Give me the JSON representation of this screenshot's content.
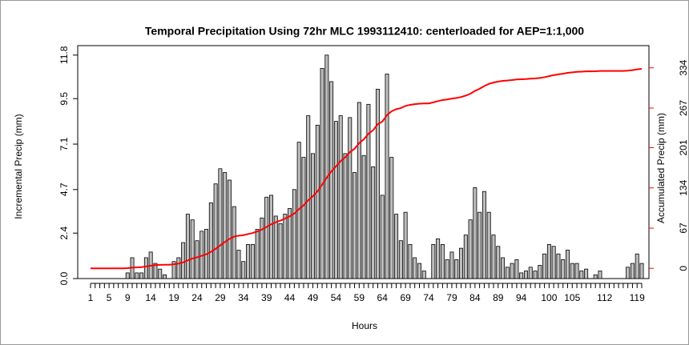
{
  "chart_data": {
    "type": "bar",
    "title": "Temporal Precipitation Using 72hr MLC 1993112410: centerloaded for AEP=1:1,000",
    "x_label": "Hours",
    "y_label": "Incremental Precip (mm)",
    "y2_label": "Accumulated Precip (mm)",
    "categories": [
      "1",
      null,
      null,
      null,
      "5",
      null,
      null,
      null,
      "9",
      null,
      null,
      null,
      null,
      "14",
      null,
      null,
      null,
      null,
      "19",
      null,
      null,
      null,
      null,
      "24",
      null,
      null,
      null,
      null,
      "29",
      null,
      null,
      null,
      null,
      "34",
      null,
      null,
      null,
      null,
      "39",
      null,
      null,
      null,
      null,
      "44",
      null,
      null,
      null,
      null,
      "49",
      null,
      null,
      null,
      null,
      "54",
      null,
      null,
      null,
      null,
      "59",
      null,
      null,
      null,
      null,
      "64",
      null,
      null,
      null,
      null,
      "69",
      null,
      null,
      null,
      null,
      "74",
      null,
      null,
      null,
      null,
      "79",
      null,
      null,
      null,
      null,
      "84",
      null,
      null,
      null,
      null,
      "89",
      null,
      null,
      null,
      null,
      "94",
      null,
      null,
      null,
      null,
      null,
      "100",
      null,
      null,
      null,
      null,
      "105",
      null,
      null,
      null,
      null,
      null,
      null,
      "112",
      null,
      null,
      null,
      null,
      null,
      null,
      "119",
      null
    ],
    "series": [
      {
        "type": "bar",
        "color": "#bebebe",
        "values": [
          0,
          0,
          0,
          0,
          0,
          0,
          0,
          0,
          0.3,
          1.1,
          0.3,
          0.3,
          1.1,
          1.4,
          0.8,
          0.5,
          0.2,
          0,
          0.9,
          1.1,
          1.9,
          3.4,
          3.1,
          2.0,
          2.5,
          2.6,
          4.0,
          5.0,
          5.8,
          5.6,
          5.2,
          3.8,
          1.5,
          0.9,
          1.8,
          1.8,
          2.6,
          3.2,
          4.3,
          4.4,
          3.3,
          2.9,
          3.4,
          3.7,
          4.7,
          7.2,
          6.4,
          8.6,
          6.6,
          8.1,
          11.1,
          11.8,
          10.4,
          8.3,
          8.6,
          6.6,
          8.5,
          5.6,
          9.3,
          6.5,
          9.2,
          5.9,
          10.0,
          4.4,
          10.8,
          6.4,
          3.4,
          2.0,
          3.5,
          1.8,
          1.1,
          0.8,
          0.4,
          0,
          1.8,
          2.1,
          1.8,
          1.0,
          1.4,
          1.0,
          1.6,
          2.3,
          3.1,
          4.8,
          3.5,
          4.6,
          3.5,
          2.3,
          1.7,
          1.1,
          0.6,
          0.8,
          1.0,
          0.3,
          0.4,
          0.6,
          0.4,
          0.7,
          1.3,
          1.8,
          1.7,
          1.3,
          1.0,
          1.5,
          0.8,
          0.8,
          0.4,
          0.5,
          0,
          0.2,
          0.4,
          0,
          0,
          0,
          0,
          0,
          0.6,
          0.8,
          1.3,
          0.8
        ]
      },
      {
        "type": "line",
        "axis": "y2",
        "color": "#ff0000",
        "values": [
          0,
          0,
          0,
          0,
          0,
          0,
          0,
          0,
          0.3,
          1.4,
          1.7,
          2.0,
          3.1,
          4.5,
          5.3,
          5.8,
          6.0,
          6.0,
          6.9,
          8.0,
          9.9,
          13.3,
          16.4,
          18.4,
          20.9,
          23.5,
          27.5,
          32.5,
          38.3,
          43.9,
          49.1,
          52.9,
          54.4,
          55.3,
          57.1,
          58.9,
          61.5,
          64.7,
          69.0,
          73.4,
          76.7,
          79.6,
          83.0,
          86.7,
          91.4,
          98.6,
          105.0,
          113.6,
          120.2,
          128.3,
          139.4,
          151.2,
          161.6,
          169.9,
          178.5,
          185.1,
          193.6,
          199.2,
          208.5,
          215.0,
          224.2,
          230.1,
          240.1,
          244.5,
          255.3,
          261.7,
          265.1,
          267.1,
          270.6,
          272.4,
          273.5,
          274.3,
          274.7,
          274.7,
          276.5,
          278.6,
          280.4,
          281.4,
          282.8,
          283.8,
          285.4,
          287.7,
          290.8,
          295.6,
          299.1,
          303.7,
          307.2,
          309.5,
          311.2,
          312.3,
          312.9,
          313.7,
          314.7,
          315.0,
          315.4,
          316.0,
          316.4,
          317.1,
          318.4,
          320.2,
          321.9,
          323.2,
          324.2,
          325.7,
          326.5,
          327.3,
          327.7,
          328.2,
          328.2,
          328.4,
          328.8,
          328.8,
          328.8,
          328.8,
          328.8,
          328.8,
          329.4,
          330.2,
          331.5,
          332.3
        ]
      }
    ],
    "ylim": [
      0,
      12.3
    ],
    "yticks": [
      {
        "value": 0,
        "label": "0.0"
      },
      2.4,
      4.7,
      7.1,
      9.5,
      11.8
    ],
    "y2lim": [
      -17,
      371
    ],
    "y2ticks": [
      0,
      67,
      134,
      201,
      267,
      334
    ],
    "y2_color": "#ff0000"
  }
}
